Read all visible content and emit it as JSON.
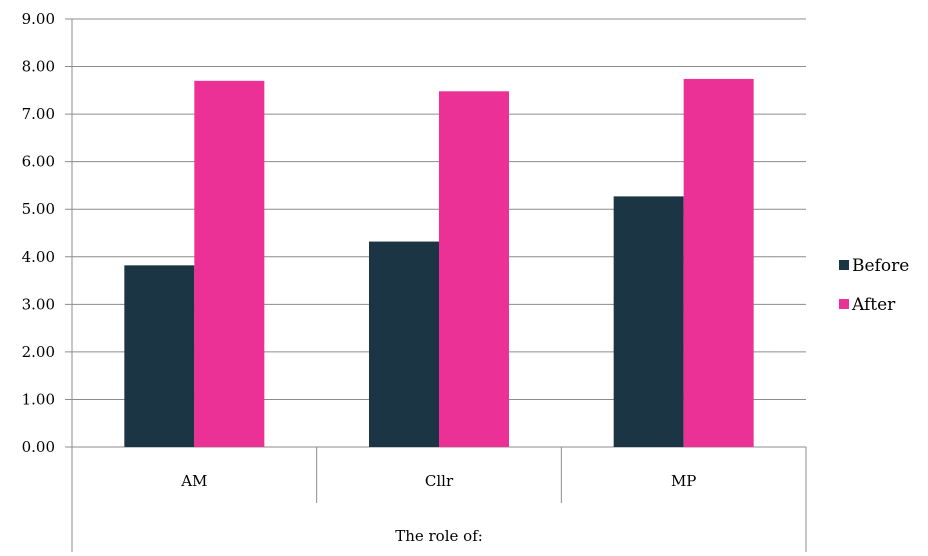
{
  "chart_data": {
    "type": "bar",
    "categories": [
      "AM",
      "Cllr",
      "MP"
    ],
    "series": [
      {
        "name": "Before",
        "values": [
          3.82,
          4.32,
          5.27
        ],
        "color": "#1c3544"
      },
      {
        "name": "After",
        "values": [
          7.7,
          7.48,
          7.74
        ],
        "color": "#ec3196"
      }
    ],
    "ylim": [
      0,
      9
    ],
    "yticks": [
      "0.00",
      "1.00",
      "2.00",
      "3.00",
      "4.00",
      "5.00",
      "6.00",
      "7.00",
      "8.00",
      "9.00"
    ],
    "xlabel": "The role of:",
    "ylabel": "",
    "title": "",
    "grid": true,
    "legend_position": "right"
  }
}
